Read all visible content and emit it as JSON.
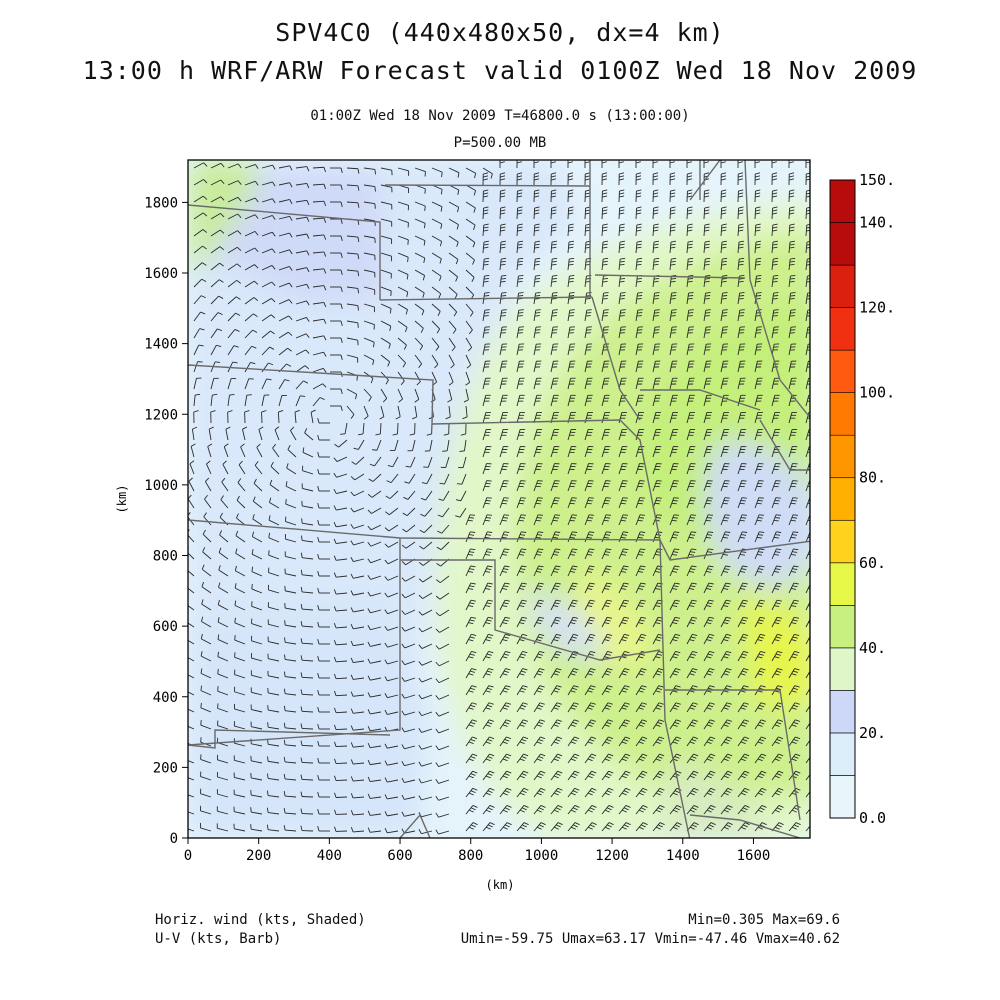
{
  "header": {
    "title_line1": "SPV4C0 (440x480x50, dx=4 km)",
    "title_line2": "13:00 h WRF/ARW Forecast valid 0100Z Wed 18 Nov 2009",
    "subtitle_line1": "01:00Z Wed 18 Nov 2009    T=46800.0 s (13:00:00)",
    "subtitle_line2": "P=500.00 MB"
  },
  "axes": {
    "x_label": "(km)",
    "y_label": "(km)",
    "x_ticks": [
      "0",
      "200",
      "400",
      "600",
      "800",
      "1000",
      "1200",
      "1400",
      "1600"
    ],
    "y_ticks": [
      "0",
      "200",
      "400",
      "600",
      "800",
      "1000",
      "1200",
      "1400",
      "1600",
      "1800"
    ]
  },
  "colorbar": {
    "labels": [
      "0.0",
      "20.",
      "40.",
      "60.",
      "80.",
      "100.",
      "120.",
      "140.",
      "150."
    ],
    "colors": [
      "#e8f6fb",
      "#dbeefa",
      "#cdd7f7",
      "#dff6c8",
      "#c8f081",
      "#e6f747",
      "#ffd21e",
      "#ffb000",
      "#ff9600",
      "#ff7a00",
      "#ff5a10",
      "#f03010",
      "#dc2010",
      "#b80c0c"
    ]
  },
  "footer": {
    "left_line1": "Horiz. wind (kts, Shaded)",
    "left_line2": "U-V (kts, Barb)",
    "right_line1": "Min=0.305 Max=69.6",
    "right_line2": "Umin=-59.75 Umax=63.17 Vmin=-47.46 Vmax=40.62"
  }
}
